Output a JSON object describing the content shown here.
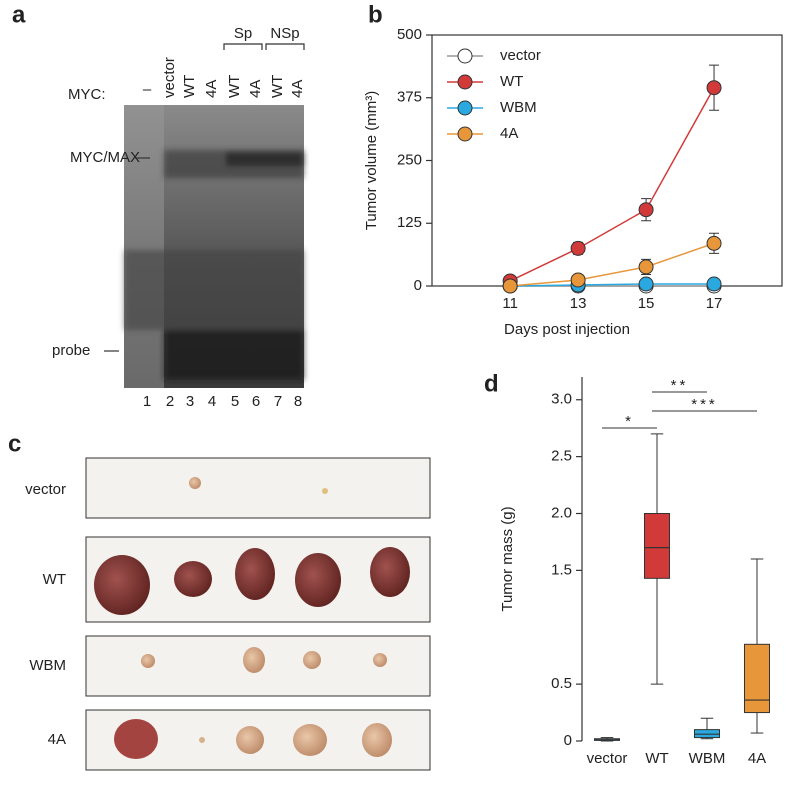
{
  "panel_labels": [
    "a",
    "b",
    "c",
    "d"
  ],
  "gel": {
    "row_label": "MYC:",
    "lanes": [
      "–",
      "vector",
      "WT",
      "4A",
      "WT",
      "4A",
      "WT",
      "4A"
    ],
    "groups": [
      "Sp",
      "NSp"
    ],
    "bands": [
      "MYC/MAX",
      "probe"
    ],
    "lane_numbers": [
      "1",
      "2",
      "3",
      "4",
      "5",
      "6",
      "7",
      "8"
    ]
  },
  "photo": {
    "rows": [
      "vector",
      "WT",
      "WBM",
      "4A"
    ]
  },
  "chart_data": [
    {
      "type": "line",
      "y_label": "Tumor volume (mm³)",
      "x_label": "Days post injection",
      "x": [
        11,
        13,
        15,
        17
      ],
      "xlim": [
        8.7,
        19
      ],
      "xticks": [
        11,
        13,
        15,
        17
      ],
      "ylim": [
        0,
        500
      ],
      "yticks": [
        0,
        125,
        250,
        375,
        500
      ],
      "legend": "upper left",
      "series": [
        {
          "name": "vector",
          "color": "#ffffff",
          "values": [
            0,
            0,
            0,
            0
          ],
          "errors": [
            0,
            0,
            0,
            0
          ]
        },
        {
          "name": "WT",
          "color": "#d23a3a",
          "values": [
            10,
            75,
            152,
            395
          ],
          "errors": [
            0,
            12,
            22,
            45
          ]
        },
        {
          "name": "WBM",
          "color": "#2aa8e0",
          "values": [
            0,
            2,
            4,
            4
          ],
          "errors": [
            0,
            0,
            2,
            2
          ]
        },
        {
          "name": "4A",
          "color": "#e8963a",
          "values": [
            0,
            12,
            38,
            85
          ],
          "errors": [
            0,
            0,
            15,
            20
          ]
        }
      ]
    },
    {
      "type": "box",
      "y_label": "Tumor mass (g)",
      "categories": [
        "vector",
        "WT",
        "WBM",
        "4A"
      ],
      "colors": [
        "#2aa8e0",
        "#d23a3a",
        "#2aa8e0",
        "#e8963a"
      ],
      "boxes": [
        {
          "min": 0,
          "q1": 0.005,
          "median": 0.01,
          "q3": 0.02,
          "max": 0.03
        },
        {
          "min": 0.5,
          "q1": 1.43,
          "median": 1.7,
          "q3": 2.0,
          "max": 2.7
        },
        {
          "min": 0.02,
          "q1": 0.03,
          "median": 0.06,
          "q3": 0.1,
          "max": 0.2
        },
        {
          "min": 0.07,
          "q1": 0.25,
          "median": 0.36,
          "q3": 0.85,
          "max": 1.6
        }
      ],
      "ylim": [
        0,
        3.2
      ],
      "yticks": [
        0,
        0.5,
        {
          "value": 1.5,
          "label": "1.5"
        },
        {
          "value": 2.0,
          "label": "2.0"
        },
        2.5,
        {
          "value": 3.0,
          "label": "3.0"
        }
      ],
      "annotations": [
        "*",
        "**",
        "***"
      ]
    }
  ]
}
